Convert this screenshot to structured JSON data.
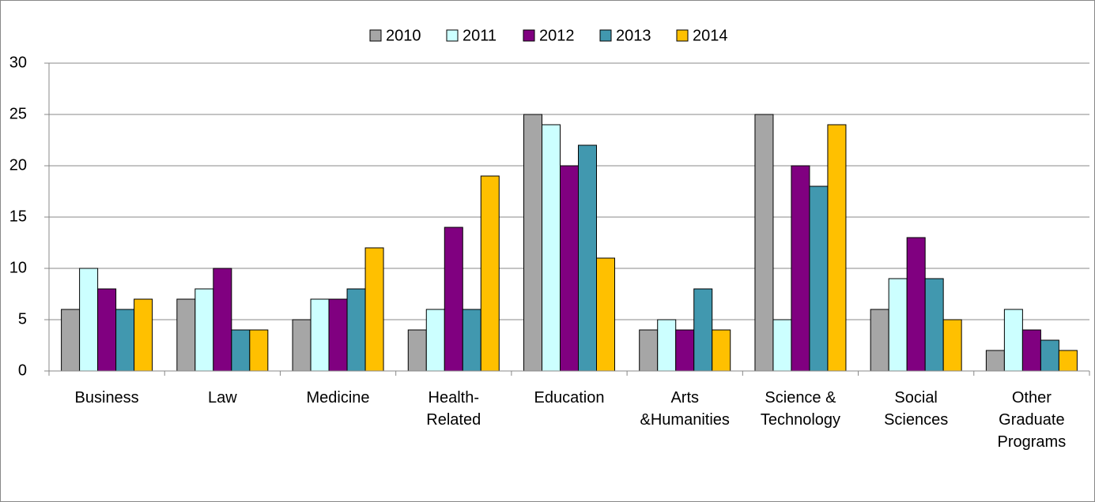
{
  "chart_data": {
    "type": "bar",
    "categories": [
      "Business",
      "Law",
      "Medicine",
      "Health-Related",
      "Education",
      "Arts &Humanities",
      "Science & Technology",
      "Social Sciences",
      "Other Graduate Programs"
    ],
    "series": [
      {
        "name": "2010",
        "color": "#a6a6a6",
        "values": [
          6,
          7,
          5,
          4,
          25,
          4,
          25,
          6,
          2
        ]
      },
      {
        "name": "2011",
        "color": "#ccffff",
        "values": [
          10,
          8,
          7,
          6,
          24,
          5,
          5,
          9,
          6
        ]
      },
      {
        "name": "2012",
        "color": "#800080",
        "values": [
          8,
          10,
          7,
          14,
          20,
          4,
          20,
          13,
          4
        ]
      },
      {
        "name": "2013",
        "color": "#4198af",
        "values": [
          6,
          4,
          8,
          6,
          22,
          8,
          18,
          9,
          3
        ]
      },
      {
        "name": "2014",
        "color": "#ffc000",
        "values": [
          7,
          4,
          12,
          19,
          11,
          4,
          24,
          5,
          2
        ]
      }
    ],
    "ylim": [
      0,
      30
    ],
    "yticks": [
      0,
      5,
      10,
      15,
      20,
      25,
      30
    ],
    "grid": true,
    "legend": "top"
  }
}
